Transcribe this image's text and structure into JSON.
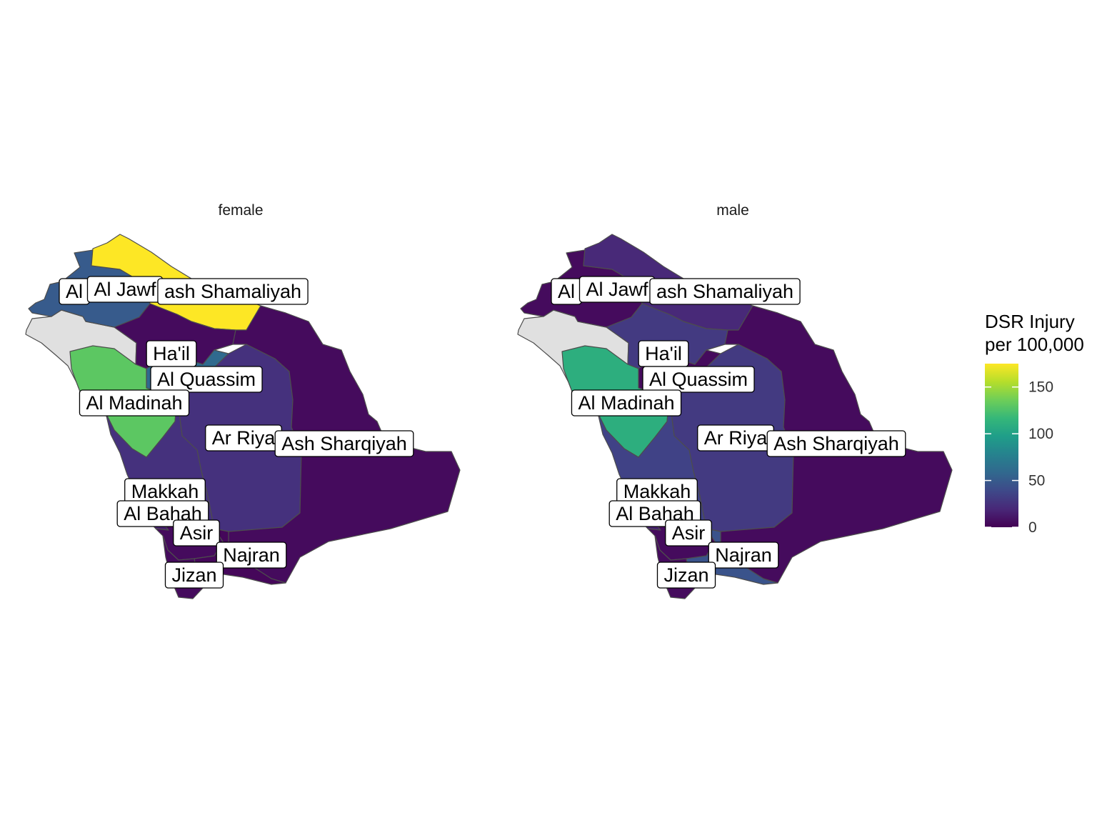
{
  "map": {
    "country": "Saudi Arabia",
    "facets": [
      {
        "key": "female",
        "title": "female",
        "regions": {
          "tabuk": {
            "label": "Al",
            "value": null
          },
          "jawf": {
            "label": "Al Jawf",
            "value": 50
          },
          "shamaliyah": {
            "label": "ash Shamaliyah",
            "value": 175
          },
          "hail": {
            "label": "Ha'il",
            "value": 5
          },
          "qassim": {
            "label": "Al Quassim",
            "value": 60
          },
          "madinah": {
            "label": "Al Madinah",
            "value": 130
          },
          "riyadh": {
            "label": "Ar Riya",
            "value": 25
          },
          "sharqiyah": {
            "label": "Ash Sharqiyah",
            "value": 5
          },
          "makkah": {
            "label": "Makkah",
            "value": 25
          },
          "bahah": {
            "label": "Al Bahah",
            "value": 15
          },
          "asir": {
            "label": "Asir",
            "value": 5
          },
          "najran": {
            "label": "Najran",
            "value": 3
          },
          "jizan": {
            "label": "Jizan",
            "value": 5
          }
        }
      },
      {
        "key": "male",
        "title": "male",
        "regions": {
          "tabuk": {
            "label": "Al",
            "value": null
          },
          "jawf": {
            "label": "Al Jawf",
            "value": 5
          },
          "shamaliyah": {
            "label": "ash Shamaliyah",
            "value": 20
          },
          "hail": {
            "label": "Ha'il",
            "value": 30
          },
          "qassim": {
            "label": "Al Quassim",
            "value": 5
          },
          "madinah": {
            "label": "Al Madinah",
            "value": 110
          },
          "riyadh": {
            "label": "Ar Riya",
            "value": 30
          },
          "sharqiyah": {
            "label": "Ash Sharqiyah",
            "value": 5
          },
          "makkah": {
            "label": "Makkah",
            "value": 35
          },
          "bahah": {
            "label": "Al Bahah",
            "value": 15
          },
          "asir": {
            "label": "Asir",
            "value": 5
          },
          "najran": {
            "label": "Najran",
            "value": 45
          },
          "jizan": {
            "label": "Jizan",
            "value": 5
          }
        }
      }
    ],
    "legend": {
      "title_line1": "DSR Injury",
      "title_line2": "per 100,000",
      "min": 0,
      "max": 175,
      "ticks": [
        {
          "value": 0,
          "label": "0"
        },
        {
          "value": 50,
          "label": "50"
        },
        {
          "value": 100,
          "label": "100"
        },
        {
          "value": 150,
          "label": "150"
        }
      ],
      "palette": [
        "#440154",
        "#482878",
        "#3e4989",
        "#31688e",
        "#26828e",
        "#1f9e89",
        "#35b779",
        "#6ece58",
        "#b5de2b",
        "#fde725"
      ],
      "na_color": "#e0e0e0"
    }
  }
}
